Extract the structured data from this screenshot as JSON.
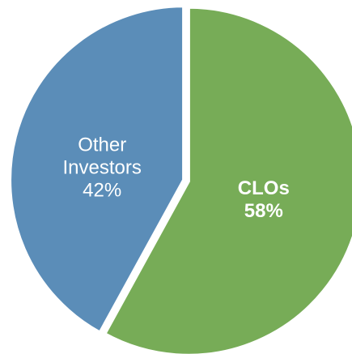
{
  "chart_data": {
    "type": "pie",
    "categories": [
      "CLOs",
      "Other Investors"
    ],
    "values": [
      58,
      42
    ],
    "value_labels": [
      "58%",
      "42%"
    ],
    "colors": [
      "#77ac57",
      "#5b8db8"
    ]
  }
}
